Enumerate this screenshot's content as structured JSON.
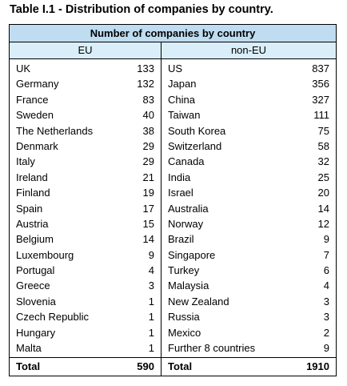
{
  "title": "Table I.1 - Distribution of companies by country.",
  "table": {
    "main_header": "Number of companies by country",
    "eu": {
      "header": "EU",
      "rows": [
        {
          "country": "UK",
          "count": "133"
        },
        {
          "country": "Germany",
          "count": "132"
        },
        {
          "country": "France",
          "count": "83"
        },
        {
          "country": "Sweden",
          "count": "40"
        },
        {
          "country": "The Netherlands",
          "count": "38"
        },
        {
          "country": "Denmark",
          "count": "29"
        },
        {
          "country": "Italy",
          "count": "29"
        },
        {
          "country": "Ireland",
          "count": "21"
        },
        {
          "country": "Finland",
          "count": "19"
        },
        {
          "country": "Spain",
          "count": "17"
        },
        {
          "country": "Austria",
          "count": "15"
        },
        {
          "country": "Belgium",
          "count": "14"
        },
        {
          "country": "Luxembourg",
          "count": "9"
        },
        {
          "country": "Portugal",
          "count": "4"
        },
        {
          "country": "Greece",
          "count": "3"
        },
        {
          "country": "Slovenia",
          "count": "1"
        },
        {
          "country": "Czech Republic",
          "count": "1"
        },
        {
          "country": "Hungary",
          "count": "1"
        },
        {
          "country": "Malta",
          "count": "1"
        }
      ],
      "total_label": "Total",
      "total_value": "590"
    },
    "non_eu": {
      "header": "non-EU",
      "rows": [
        {
          "country": "US",
          "count": "837"
        },
        {
          "country": "Japan",
          "count": "356"
        },
        {
          "country": "China",
          "count": "327"
        },
        {
          "country": "Taiwan",
          "count": "111"
        },
        {
          "country": "South Korea",
          "count": "75"
        },
        {
          "country": "Switzerland",
          "count": "58"
        },
        {
          "country": "Canada",
          "count": "32"
        },
        {
          "country": "India",
          "count": "25"
        },
        {
          "country": "Israel",
          "count": "20"
        },
        {
          "country": "Australia",
          "count": "14"
        },
        {
          "country": "Norway",
          "count": "12"
        },
        {
          "country": "Brazil",
          "count": "9"
        },
        {
          "country": "Singapore",
          "count": "7"
        },
        {
          "country": "Turkey",
          "count": "6"
        },
        {
          "country": "Malaysia",
          "count": "4"
        },
        {
          "country": "New Zealand",
          "count": "3"
        },
        {
          "country": "Russia",
          "count": "3"
        },
        {
          "country": "Mexico",
          "count": "2"
        },
        {
          "country": "Further 8 countries",
          "count": "9"
        }
      ],
      "total_label": "Total",
      "total_value": "1910"
    },
    "colors": {
      "main_header_bg": "#bfdcf0",
      "sub_header_bg": "#daeef9"
    }
  }
}
